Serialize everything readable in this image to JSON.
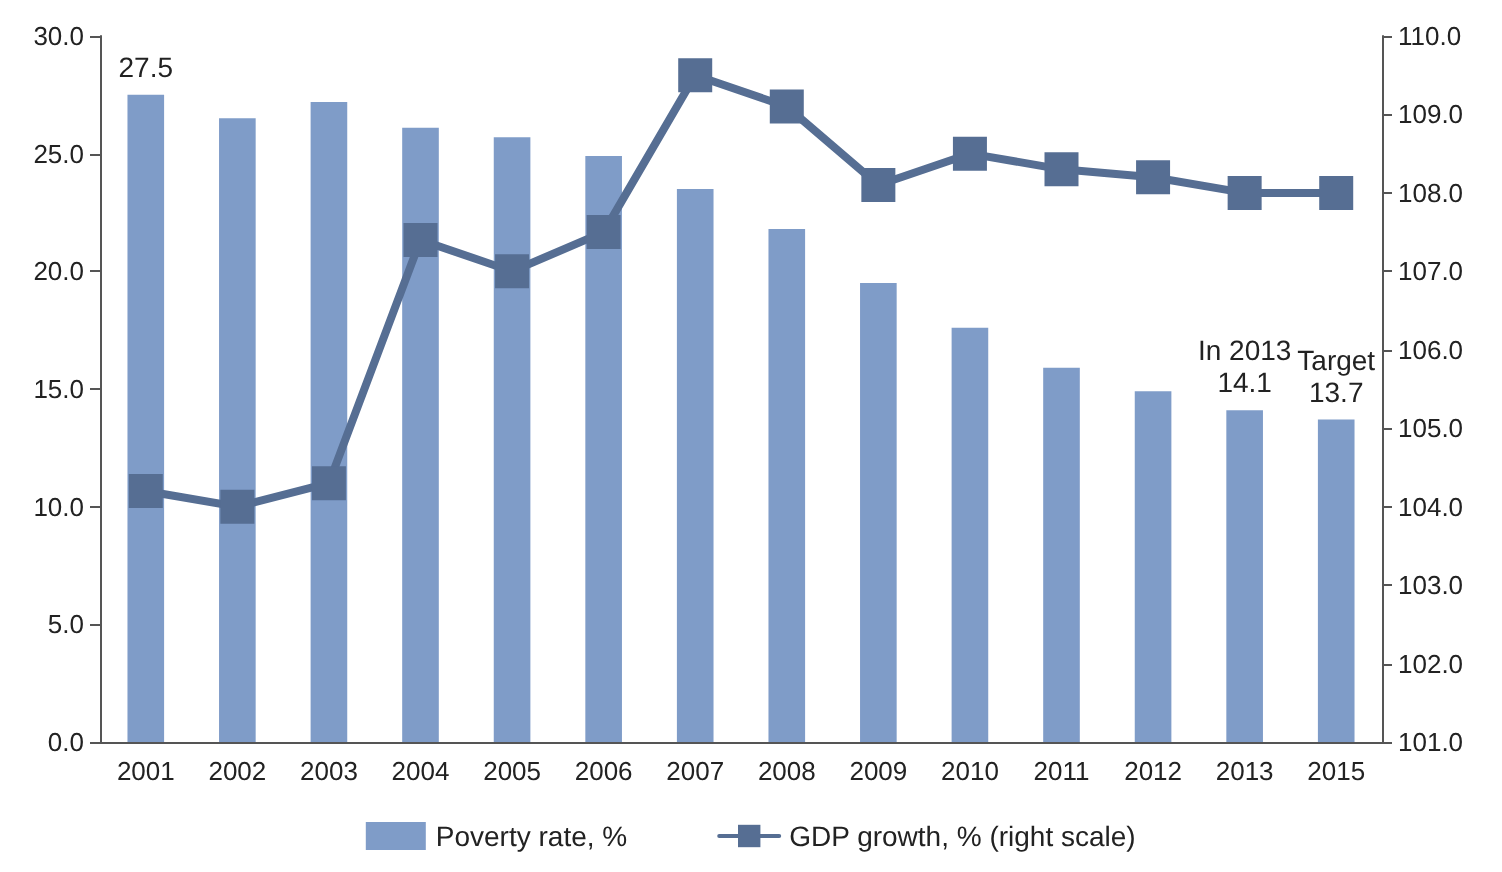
{
  "chart_data": {
    "type": "bar",
    "categories": [
      "2001",
      "2002",
      "2003",
      "2004",
      "2005",
      "2006",
      "2007",
      "2008",
      "2009",
      "2010",
      "2011",
      "2012",
      "2013",
      "2015"
    ],
    "series": [
      {
        "name": "Poverty rate, %",
        "color": "#7f9cc8",
        "values": [
          27.5,
          26.5,
          27.2,
          26.1,
          25.7,
          24.9,
          23.5,
          21.8,
          19.5,
          17.6,
          15.9,
          14.9,
          14.1,
          13.7
        ]
      },
      {
        "name": "GDP growth, % (right scale)",
        "type": "line",
        "axis": "y2",
        "color": "#566e93",
        "values": [
          104.2,
          104.0,
          104.3,
          107.4,
          107.0,
          107.5,
          109.5,
          109.1,
          108.1,
          108.5,
          108.3,
          108.2,
          108.0,
          108.0
        ]
      }
    ],
    "ylim": [
      0,
      30
    ],
    "yticks": [
      {
        "value": 0,
        "label": "0.0"
      },
      {
        "value": 5,
        "label": "5.0"
      },
      {
        "value": 10,
        "label": "10.0"
      },
      {
        "value": 15,
        "label": "15.0"
      },
      {
        "value": 20,
        "label": "20.0"
      },
      {
        "value": 25,
        "label": "25.0"
      },
      {
        "value": 30,
        "label": "30.0"
      }
    ],
    "y2lim": [
      101,
      110
    ],
    "y2ticks": [
      {
        "value": 101,
        "label": "101.0"
      },
      {
        "value": 102,
        "label": "102.0"
      },
      {
        "value": 103,
        "label": "103.0"
      },
      {
        "value": 104,
        "label": "104.0"
      },
      {
        "value": 105,
        "label": "105.0"
      },
      {
        "value": 106,
        "label": "106.0"
      },
      {
        "value": 107,
        "label": "107.0"
      },
      {
        "value": 108,
        "label": "108.0"
      },
      {
        "value": 109,
        "label": "109.0"
      },
      {
        "value": 110,
        "label": "110.0"
      }
    ],
    "annotations": [
      {
        "text": "27.5",
        "x": "2001",
        "y": 27.5
      },
      {
        "text": "In 2013\n14.1",
        "x": "2013",
        "y": 14.1
      },
      {
        "text": "Target\n13.7",
        "x": "2015",
        "y": 13.7
      }
    ],
    "marker": "square",
    "line_style": "solid",
    "grid": false,
    "legend": "bottom"
  }
}
